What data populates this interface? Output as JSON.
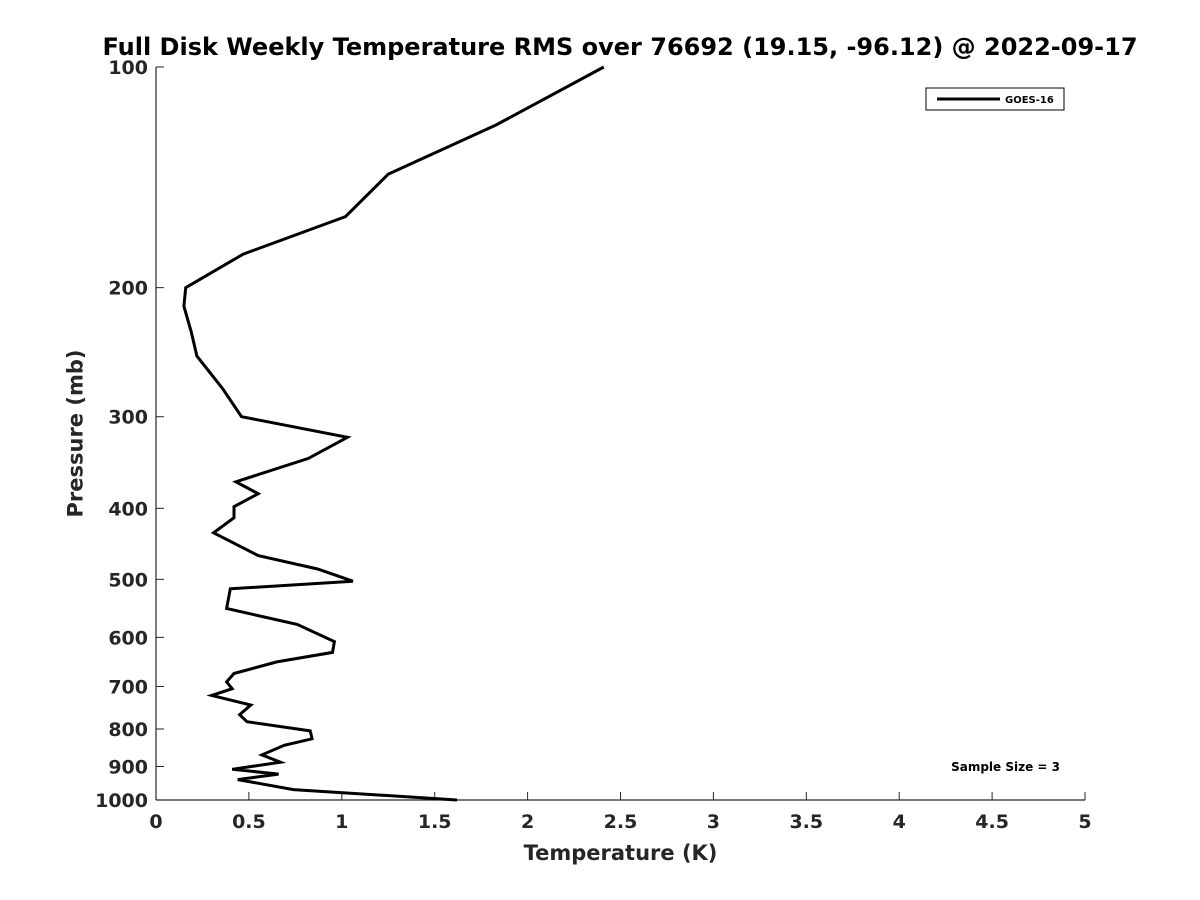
{
  "chart_data": {
    "type": "line",
    "title": "Full Disk Weekly Temperature RMS over 76692 (19.15, -96.12) @ 2022-09-17",
    "xlabel": "Temperature (K)",
    "ylabel": "Pressure (mb)",
    "xlim": [
      0,
      5
    ],
    "ylim": [
      100,
      1000
    ],
    "y_scale": "log",
    "y_reversed": true,
    "x_ticks": [
      "0",
      "0.5",
      "1",
      "1.5",
      "2",
      "2.5",
      "3",
      "3.5",
      "4",
      "4.5",
      "5"
    ],
    "y_ticks": [
      "100",
      "200",
      "300",
      "400",
      "500",
      "600",
      "700",
      "800",
      "900",
      "1000"
    ],
    "grid": false,
    "legend_position": "top-right",
    "annotation": "Sample Size = 3",
    "series": [
      {
        "name": "GOES-16",
        "color": "#000000",
        "x": [
          2.41,
          1.83,
          1.25,
          1.02,
          0.47,
          0.16,
          0.15,
          0.19,
          0.22,
          0.36,
          0.46,
          1.03,
          0.82,
          0.43,
          0.55,
          0.42,
          0.42,
          0.31,
          0.55,
          0.87,
          1.06,
          0.4,
          0.38,
          0.76,
          0.96,
          0.95,
          0.65,
          0.42,
          0.38,
          0.41,
          0.3,
          0.51,
          0.45,
          0.49,
          0.83,
          0.84,
          0.69,
          0.57,
          0.67,
          0.41,
          0.66,
          0.44,
          0.74,
          1.62
        ],
        "y": [
          100,
          120,
          140,
          160,
          180,
          200,
          212,
          230,
          248,
          275,
          300,
          320,
          342,
          368,
          382,
          398,
          412,
          432,
          464,
          484,
          503,
          515,
          548,
          576,
          608,
          629,
          648,
          672,
          690,
          705,
          720,
          742,
          765,
          782,
          805,
          825,
          842,
          868,
          888,
          908,
          922,
          938,
          968,
          1000
        ]
      }
    ]
  }
}
